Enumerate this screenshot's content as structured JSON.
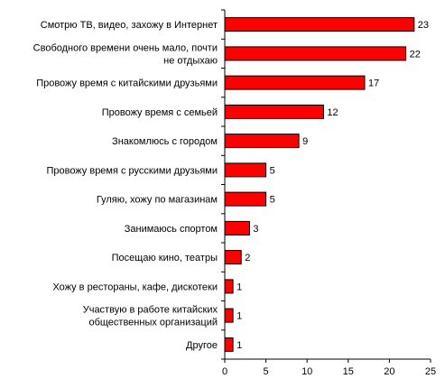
{
  "colors": {
    "bar_fill": "#ff0000",
    "bar_stroke": "#000000",
    "axis": "#000000",
    "background": "#ffffff"
  },
  "chart_data": {
    "type": "bar",
    "orientation": "horizontal",
    "title": "",
    "xlabel": "",
    "ylabel": "",
    "xlim": [
      0,
      25
    ],
    "xticks": [
      0,
      5,
      10,
      15,
      20,
      25
    ],
    "grid": false,
    "legend": "none",
    "categories": [
      [
        "Смотрю ТВ, видео, захожу в Интернет"
      ],
      [
        "Свободного времени очень мало, почти",
        "не отдыхаю"
      ],
      [
        "Провожу время с китайскими друзьями"
      ],
      [
        "Провожу время с семьей"
      ],
      [
        "Знакомлюсь с городом"
      ],
      [
        "Провожу время с русскими друзьями"
      ],
      [
        "Гуляю, хожу по магазинам"
      ],
      [
        "Занимаюсь спортом"
      ],
      [
        "Посещаю кино, театры"
      ],
      [
        "Хожу в рестораны, кафе, дискотеки"
      ],
      [
        "Участвую в работе китайских",
        "общественных организаций"
      ],
      [
        "Другое"
      ]
    ],
    "values": [
      23,
      22,
      17,
      12,
      9,
      5,
      5,
      3,
      2,
      1,
      1,
      1
    ]
  }
}
